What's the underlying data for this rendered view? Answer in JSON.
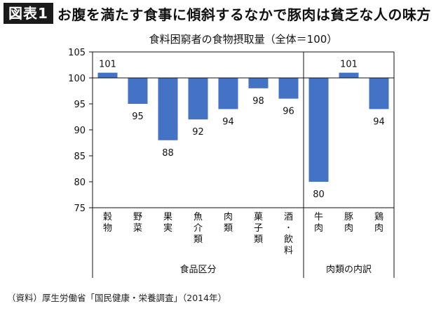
{
  "header": {
    "badge": "図表1",
    "headline": "お腹を満たす食事に傾斜するなかで豚肉は貧乏な人の味方"
  },
  "source": "（資料）厚生労働省「国民健康・栄養調査」（2014年）",
  "chart_data": {
    "type": "bar",
    "title": "食料困窮者の食物摂取量（全体＝100）",
    "categories": [
      "穀物",
      "野菜",
      "果実",
      "魚介類",
      "肉類",
      "菓子類",
      "酒・飲料",
      "牛肉",
      "豚肉",
      "鶏肉"
    ],
    "values": [
      101,
      95,
      88,
      92,
      94,
      98,
      96,
      80,
      101,
      94
    ],
    "data_labels": [
      "101",
      "95",
      "88",
      "92",
      "94",
      "98",
      "96",
      "80",
      "101",
      "94"
    ],
    "baseline": 100,
    "ylim": [
      75,
      105
    ],
    "yticks": [
      75,
      80,
      85,
      90,
      95,
      100,
      105
    ],
    "groups": [
      {
        "label": "食品区分",
        "count": 7
      },
      {
        "label": "肉類の内訳",
        "count": 3
      }
    ],
    "bar_color": "#4472c4"
  }
}
